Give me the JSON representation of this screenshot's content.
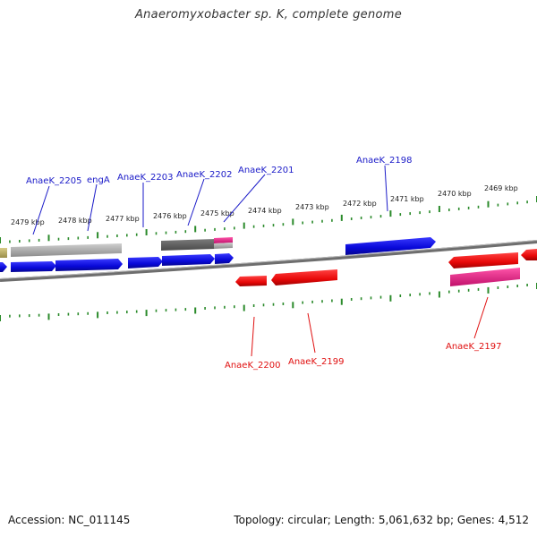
{
  "title": "Anaeromyxobacter sp. K, complete genome",
  "footer": {
    "accession": "Accession: NC_011145",
    "topology": "Topology: circular; Length: 5,061,632 bp; Genes: 4,512"
  },
  "kbp_labels": [
    "2479 kbp",
    "2478 kbp",
    "2477 kbp",
    "2476 kbp",
    "2475 kbp",
    "2474 kbp",
    "2473 kbp",
    "2472 kbp",
    "2471 kbp",
    "2470 kbp",
    "2469 kbp"
  ],
  "gene_labels_forward": [
    "AnaeK_2205",
    "engA",
    "AnaeK_2203",
    "AnaeK_2202",
    "AnaeK_2201",
    "AnaeK_2198"
  ],
  "gene_labels_reverse": [
    "AnaeK_2200",
    "AnaeK_2199",
    "AnaeK_2197"
  ],
  "colors": {
    "forward_gene": "#1010e0",
    "reverse_gene": "#ee1010",
    "pseudo_gene": "#8a8a8a",
    "rna_gene": "#ee2288",
    "tick": "#2a8a2a",
    "backbone": "#777777",
    "label_blue": "#1a1ac8",
    "label_red": "#e01010"
  }
}
